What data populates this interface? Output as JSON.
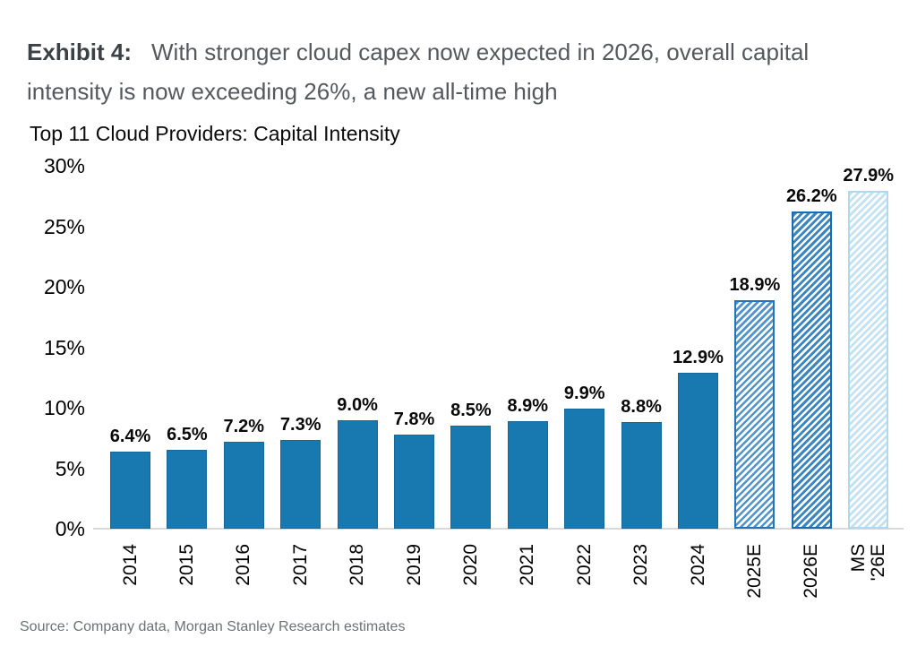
{
  "page": {
    "exhibit_label": "Exhibit 4:",
    "title_line1": "With stronger cloud capex now expected in 2026, overall capital",
    "title_line2": "intensity is now exceeding 26%, a new all-time high",
    "source": "Source: Company data, Morgan Stanley Research estimates"
  },
  "chart_data": {
    "type": "bar",
    "title": "Top 11 Cloud Providers: Capital Intensity",
    "categories": [
      "2014",
      "2015",
      "2016",
      "2017",
      "2018",
      "2019",
      "2020",
      "2021",
      "2022",
      "2023",
      "2024",
      "2025E",
      "2026E",
      "MS '26E"
    ],
    "x_display": [
      "2014",
      "2015",
      "2016",
      "2017",
      "2018",
      "2019",
      "2020",
      "2021",
      "2022",
      "2023",
      "2024",
      "2025E",
      "2026E",
      "MS\n'26E"
    ],
    "values": [
      6.4,
      6.5,
      7.2,
      7.3,
      9.0,
      7.8,
      8.5,
      8.9,
      9.9,
      8.8,
      12.9,
      18.9,
      26.2,
      27.9
    ],
    "data_labels": [
      "6.4%",
      "6.5%",
      "7.2%",
      "7.3%",
      "9.0%",
      "7.8%",
      "8.5%",
      "8.9%",
      "9.9%",
      "8.8%",
      "12.9%",
      "18.9%",
      "26.2%",
      "27.9%"
    ],
    "bar_styles": [
      "style-actual",
      "style-actual",
      "style-actual",
      "style-actual",
      "style-actual",
      "style-actual",
      "style-actual",
      "style-actual",
      "style-actual",
      "style-actual",
      "style-actual",
      "style-estimate",
      "style-estimate-strong",
      "style-ms-estimate"
    ],
    "xlabel": "",
    "ylabel": "",
    "ylim": [
      0,
      30
    ],
    "yticks": [
      0,
      5,
      10,
      15,
      20,
      25,
      30
    ],
    "ytick_labels": [
      "0%",
      "5%",
      "10%",
      "15%",
      "20%",
      "25%",
      "30%"
    ],
    "grid": false,
    "legend_position": "none",
    "colors": {
      "actual_bar": "#1878b0",
      "actual_bar_border": "#15679c",
      "estimate_hatch": "#5094cb",
      "estimate_border": "#2475b7",
      "estimate_strong_hatch": "#3a85c2",
      "estimate_strong_border": "#1a6cb0",
      "ms_estimate_hatch": "#c2e2f3",
      "ms_estimate_border": "#aed9ef",
      "axis_line": "#d9d9d9",
      "title_label": "#3c4146",
      "title_body": "#55585d",
      "source_text": "#6d7175"
    }
  }
}
